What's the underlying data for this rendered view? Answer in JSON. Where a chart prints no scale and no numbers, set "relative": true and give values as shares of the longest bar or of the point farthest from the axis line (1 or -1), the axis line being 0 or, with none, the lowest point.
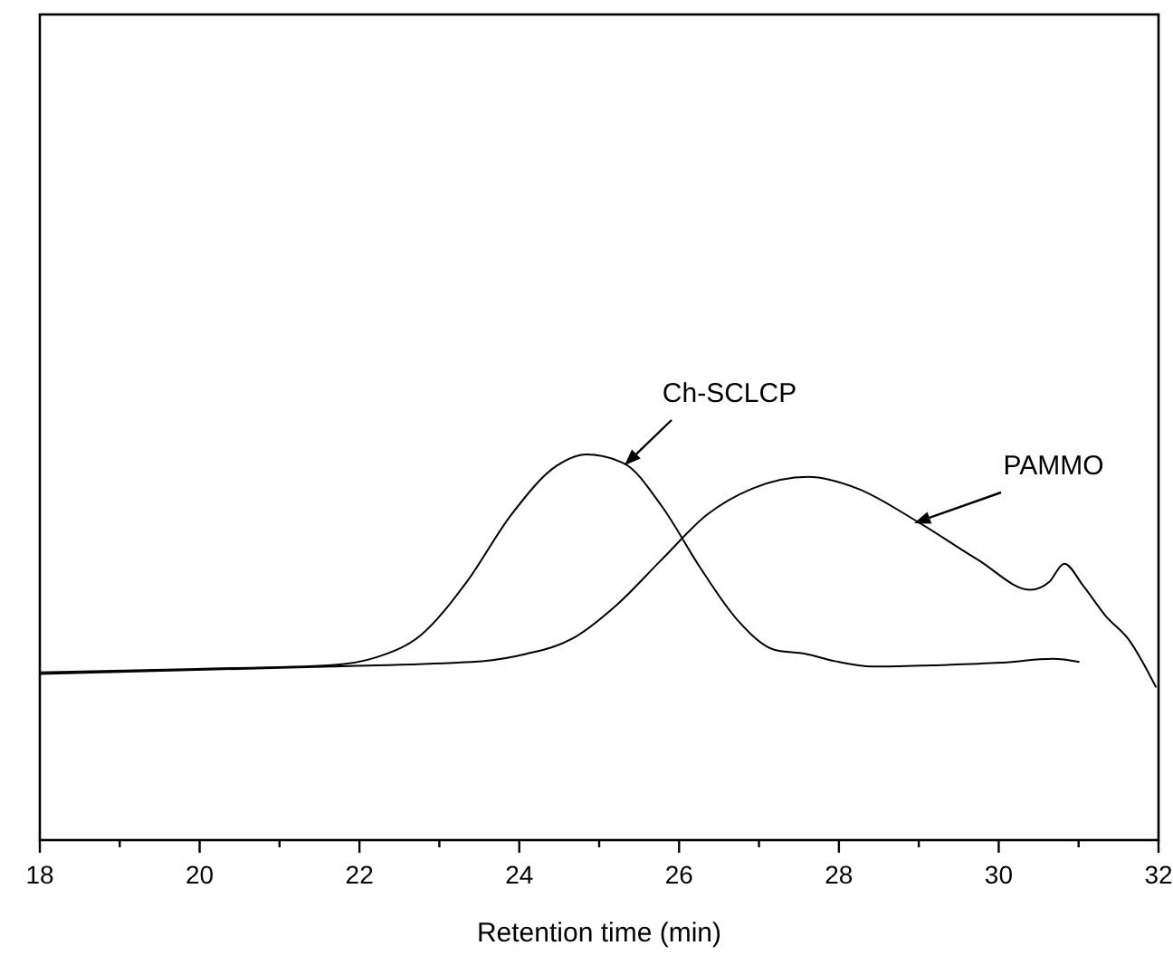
{
  "chart_data": {
    "type": "line",
    "xlabel": "Retention time (min)",
    "relative": true,
    "xlim": [
      18,
      32
    ],
    "xticks": [
      18,
      {
        "value": 19,
        "label": null
      },
      20,
      {
        "value": 21,
        "label": null
      },
      22,
      {
        "value": 23,
        "label": null
      },
      24,
      {
        "value": 25,
        "label": null
      },
      26,
      {
        "value": 27,
        "label": null
      },
      28,
      {
        "value": 29,
        "label": null
      },
      30,
      {
        "value": 31,
        "label": null
      },
      32
    ],
    "grid": false,
    "legend": false,
    "marker": "none",
    "line_style": "solid",
    "tick_labels": "x",
    "series": [
      {
        "name": "Ch-SCLCP",
        "color": "#000000",
        "x": [
          18.0,
          19.96,
          21.65,
          22.21,
          22.77,
          23.34,
          23.9,
          24.47,
          24.84,
          25.31,
          25.79,
          26.26,
          26.73,
          27.2,
          27.58,
          27.95,
          28.42,
          29.27,
          30.02,
          30.68,
          31.01
        ],
        "values": [
          0.435,
          0.444,
          0.454,
          0.474,
          0.532,
          0.669,
          0.844,
          0.971,
          1.0,
          0.977,
          0.864,
          0.708,
          0.571,
          0.493,
          0.483,
          0.464,
          0.45,
          0.454,
          0.46,
          0.47,
          0.462
        ]
      },
      {
        "name": "PAMMO",
        "color": "#000000",
        "x": [
          18.0,
          21.65,
          23.53,
          24.09,
          24.66,
          25.22,
          25.78,
          26.35,
          26.92,
          27.62,
          28.23,
          28.99,
          29.74,
          30.4,
          30.63,
          30.82,
          31.06,
          31.34,
          31.62,
          31.97
        ],
        "values": [
          0.431,
          0.45,
          0.464,
          0.483,
          0.522,
          0.61,
          0.727,
          0.844,
          0.912,
          0.942,
          0.912,
          0.825,
          0.727,
          0.649,
          0.669,
          0.717,
          0.659,
          0.581,
          0.522,
          0.396
        ]
      }
    ]
  }
}
